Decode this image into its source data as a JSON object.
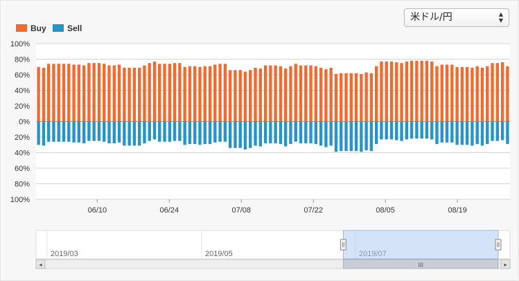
{
  "currency_select": {
    "value": "米ドル/円"
  },
  "chart_data": {
    "type": "bar",
    "stacked": true,
    "series": [
      {
        "name": "Buy",
        "color": "#f26a2e",
        "values": [
          70,
          69,
          74,
          74,
          74,
          74,
          74,
          73,
          73,
          72,
          75,
          75,
          75,
          74,
          72,
          72,
          73,
          69,
          69,
          69,
          69,
          72,
          75,
          77,
          74,
          74,
          74,
          75,
          75,
          70,
          71,
          71,
          70,
          71,
          71,
          73,
          74,
          74,
          66,
          66,
          66,
          64,
          66,
          69,
          68,
          72,
          72,
          72,
          71,
          68,
          71,
          74,
          72,
          72,
          72,
          71,
          69,
          67,
          69,
          61,
          62,
          62,
          62,
          62,
          61,
          63,
          62,
          71,
          77,
          77,
          77,
          76,
          75,
          77,
          78,
          78,
          78,
          78,
          77,
          71,
          73,
          73,
          73,
          70,
          70,
          70,
          69,
          71,
          69,
          71,
          75,
          75,
          76,
          71
        ]
      },
      {
        "name": "Sell",
        "color": "#2594c8",
        "values": [
          -30,
          -31,
          -26,
          -26,
          -26,
          -26,
          -26,
          -27,
          -27,
          -28,
          -25,
          -25,
          -25,
          -26,
          -28,
          -28,
          -27,
          -31,
          -31,
          -31,
          -31,
          -28,
          -25,
          -23,
          -26,
          -26,
          -26,
          -25,
          -25,
          -30,
          -29,
          -29,
          -30,
          -29,
          -29,
          -27,
          -26,
          -26,
          -34,
          -34,
          -34,
          -36,
          -34,
          -31,
          -32,
          -28,
          -28,
          -28,
          -29,
          -32,
          -29,
          -26,
          -28,
          -28,
          -28,
          -29,
          -31,
          -33,
          -31,
          -39,
          -38,
          -38,
          -38,
          -38,
          -39,
          -37,
          -38,
          -29,
          -23,
          -23,
          -23,
          -24,
          -25,
          -23,
          -22,
          -22,
          -22,
          -22,
          -23,
          -29,
          -27,
          -27,
          -27,
          -30,
          -30,
          -30,
          -31,
          -29,
          -31,
          -29,
          -25,
          -25,
          -24,
          -29
        ]
      }
    ],
    "ylim": [
      -100,
      100
    ],
    "y_ticks": [
      "100%",
      "80%",
      "60%",
      "40%",
      "20%",
      "0%",
      "20%",
      "40%",
      "60%",
      "80%",
      "100%"
    ],
    "x_ticks": [
      {
        "label": "06/10",
        "index": 17
      },
      {
        "label": "06/24",
        "index": 37
      },
      {
        "label": "07/08",
        "index": 57
      },
      {
        "label": "07/22",
        "index": 77
      },
      {
        "label": "08/05",
        "index": 97
      },
      {
        "label": "08/19",
        "index": 117
      }
    ],
    "grid": true,
    "legend": "top-left"
  },
  "navigator": {
    "labels": [
      "2019/03",
      "2019/05",
      "2019/07"
    ],
    "selected_range": [
      0.6,
      1.0
    ]
  }
}
